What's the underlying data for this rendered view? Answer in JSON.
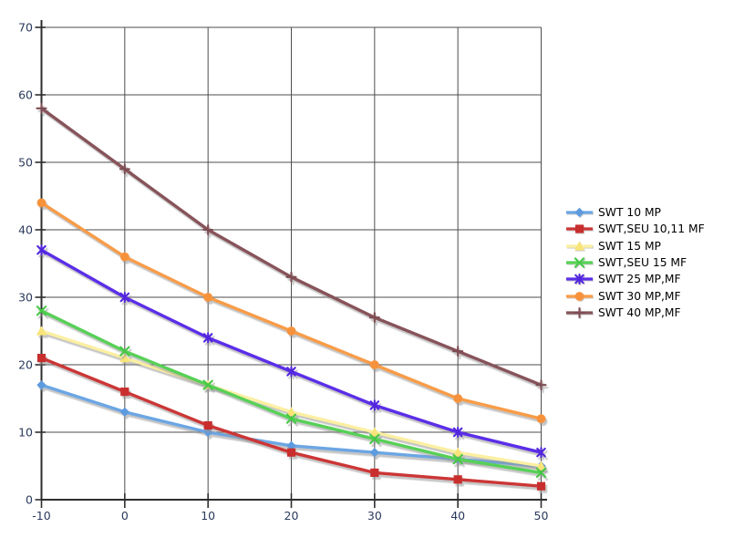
{
  "chart_data": {
    "type": "line",
    "title": "",
    "xlabel": "",
    "ylabel": "",
    "xlim": [
      -10,
      50
    ],
    "ylim": [
      0,
      70
    ],
    "x_ticks": [
      -10,
      0,
      10,
      20,
      30,
      40,
      50
    ],
    "y_ticks": [
      0,
      10,
      20,
      30,
      40,
      50,
      60,
      70
    ],
    "grid": true,
    "legend_position": "right",
    "x": [
      -10,
      0,
      10,
      20,
      30,
      40,
      50
    ],
    "series": [
      {
        "name": "SWT 10 MP",
        "color": "#6CA6E4",
        "marker_color": "#5E9BDE",
        "marker": "diamond",
        "values": [
          17,
          13,
          10,
          8,
          7,
          6,
          5
        ]
      },
      {
        "name": "SWT,SEU 10,11 MF",
        "color": "#CC3636",
        "marker_color": "#C92E2E",
        "marker": "square",
        "values": [
          21,
          16,
          11,
          7,
          4,
          3,
          2
        ]
      },
      {
        "name": "SWT 15 MP",
        "color": "#FBEFA2",
        "marker_color": "#F8E478",
        "marker": "triangle",
        "values": [
          25,
          21,
          17,
          13,
          10,
          7,
          5
        ]
      },
      {
        "name": "SWT,SEU 15 MF",
        "color": "#57D057",
        "marker_color": "#46C846",
        "marker": "x",
        "values": [
          28,
          22,
          17,
          12,
          9,
          6,
          4
        ]
      },
      {
        "name": "SWT 25 MP,MF",
        "color": "#5B2EE8",
        "marker_color": "#5226DC",
        "marker": "asterisk",
        "values": [
          37,
          30,
          24,
          19,
          14,
          10,
          7
        ]
      },
      {
        "name": "SWT 30 MP,MF",
        "color": "#F89C48",
        "marker_color": "#F7923C",
        "marker": "circle",
        "values": [
          44,
          36,
          30,
          25,
          20,
          15,
          12
        ]
      },
      {
        "name": "SWT 40 MP,MF",
        "color": "#87535A",
        "marker_color": "#7E4C53",
        "marker": "plus",
        "values": [
          58,
          49,
          40,
          33,
          27,
          22,
          17
        ]
      }
    ]
  },
  "colors": {
    "background": "#ffffff",
    "gridline": "#4d4d4d",
    "axis": "#2e2e2e",
    "tick_label": "#2b3a5c",
    "legend_text": "#000000",
    "shadow": "#969696"
  }
}
